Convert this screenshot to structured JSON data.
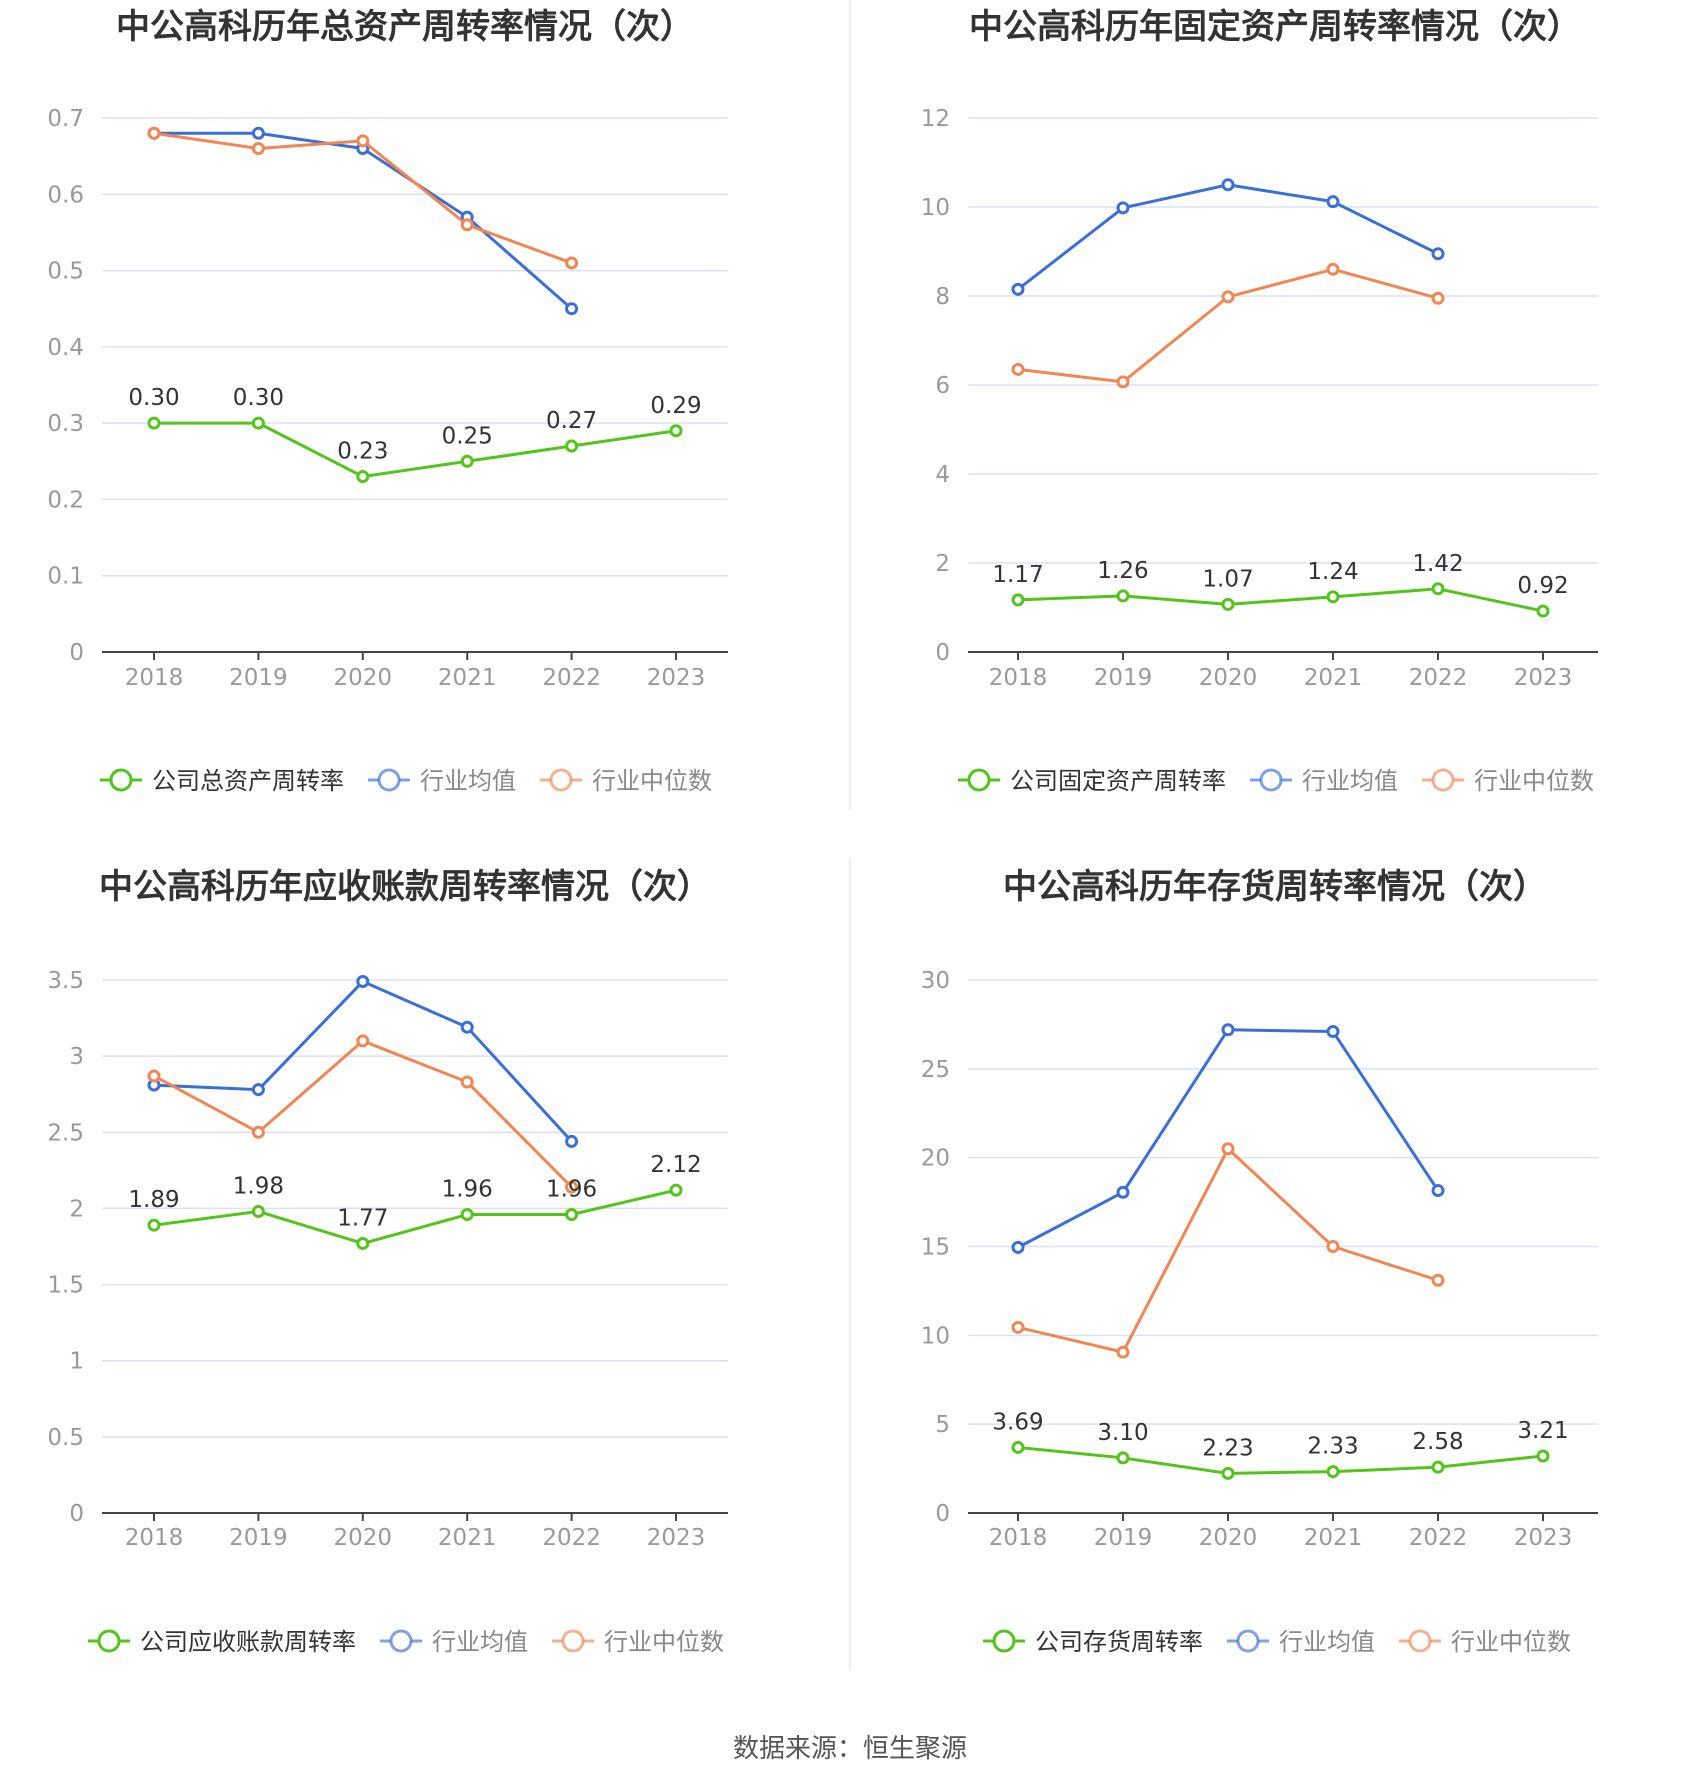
{
  "source": "数据来源：恒生聚源",
  "colors": {
    "company": "#52c41a",
    "avg": "#3b6fd6",
    "median": "#f08654",
    "grid": "#dde1ef",
    "axis": "#444444",
    "tick": "#999999"
  },
  "chart_data": [
    {
      "type": "line",
      "title": "中公高科历年总资产周转率情况（次）",
      "categories": [
        "2018",
        "2019",
        "2020",
        "2021",
        "2022",
        "2023"
      ],
      "ylim": [
        0,
        0.7
      ],
      "yticks": [
        "0",
        "0.1",
        "0.2",
        "0.3",
        "0.4",
        "0.5",
        "0.6",
        "0.7"
      ],
      "grid": true,
      "legend_position": "bottom",
      "series": [
        {
          "name": "公司总资产周转率",
          "color": "#52c41a",
          "values": [
            0.3,
            0.3,
            0.23,
            0.25,
            0.27,
            0.29
          ],
          "labels": [
            "0.30",
            "0.30",
            "0.23",
            "0.25",
            "0.27",
            "0.29"
          ]
        },
        {
          "name": "行业均值",
          "color": "#3b6fd6",
          "values": [
            0.68,
            0.68,
            0.66,
            0.57,
            0.45,
            null
          ]
        },
        {
          "name": "行业中位数",
          "color": "#f08654",
          "values": [
            0.68,
            0.66,
            0.67,
            0.56,
            0.51,
            null
          ]
        }
      ]
    },
    {
      "type": "line",
      "title": "中公高科历年固定资产周转率情况（次）",
      "categories": [
        "2018",
        "2019",
        "2020",
        "2021",
        "2022",
        "2023"
      ],
      "ylim": [
        0,
        12
      ],
      "yticks": [
        "0",
        "2",
        "4",
        "6",
        "8",
        "10",
        "12"
      ],
      "grid": true,
      "legend_position": "bottom",
      "series": [
        {
          "name": "公司固定资产周转率",
          "color": "#52c41a",
          "values": [
            1.17,
            1.26,
            1.07,
            1.24,
            1.42,
            0.92
          ],
          "labels": [
            "1.17",
            "1.26",
            "1.07",
            "1.24",
            "1.42",
            "0.92"
          ]
        },
        {
          "name": "行业均值",
          "color": "#3b6fd6",
          "values": [
            8.15,
            9.98,
            10.5,
            10.12,
            8.95,
            null
          ]
        },
        {
          "name": "行业中位数",
          "color": "#f08654",
          "values": [
            6.35,
            6.07,
            7.98,
            8.6,
            7.95,
            null
          ]
        }
      ]
    },
    {
      "type": "line",
      "title": "中公高科历年应收账款周转率情况（次）",
      "categories": [
        "2018",
        "2019",
        "2020",
        "2021",
        "2022",
        "2023"
      ],
      "ylim": [
        0,
        3.5
      ],
      "yticks": [
        "0",
        "0.5",
        "1",
        "1.5",
        "2",
        "2.5",
        "3",
        "3.5"
      ],
      "grid": true,
      "legend_position": "bottom",
      "series": [
        {
          "name": "公司应收账款周转率",
          "color": "#52c41a",
          "values": [
            1.89,
            1.98,
            1.77,
            1.96,
            1.96,
            2.12
          ],
          "labels": [
            "1.89",
            "1.98",
            "1.77",
            "1.96",
            "1.96",
            "2.12"
          ]
        },
        {
          "name": "行业均值",
          "color": "#3b6fd6",
          "values": [
            2.81,
            2.78,
            3.49,
            3.19,
            2.44,
            null
          ]
        },
        {
          "name": "行业中位数",
          "color": "#f08654",
          "values": [
            2.87,
            2.5,
            3.1,
            2.83,
            2.14,
            null
          ]
        }
      ]
    },
    {
      "type": "line",
      "title": "中公高科历年存货周转率情况（次）",
      "categories": [
        "2018",
        "2019",
        "2020",
        "2021",
        "2022",
        "2023"
      ],
      "ylim": [
        0,
        30
      ],
      "yticks": [
        "0",
        "5",
        "10",
        "15",
        "20",
        "25",
        "30"
      ],
      "grid": true,
      "legend_position": "bottom",
      "series": [
        {
          "name": "公司存货周转率",
          "color": "#52c41a",
          "values": [
            3.69,
            3.1,
            2.23,
            2.33,
            2.58,
            3.21
          ],
          "labels": [
            "3.69",
            "3.10",
            "2.23",
            "2.33",
            "2.58",
            "3.21"
          ]
        },
        {
          "name": "行业均值",
          "color": "#3b6fd6",
          "values": [
            14.95,
            18.05,
            27.2,
            27.1,
            18.15,
            null
          ]
        },
        {
          "name": "行业中位数",
          "color": "#f08654",
          "values": [
            10.45,
            9.05,
            20.5,
            15.0,
            13.1,
            null
          ]
        }
      ]
    }
  ]
}
